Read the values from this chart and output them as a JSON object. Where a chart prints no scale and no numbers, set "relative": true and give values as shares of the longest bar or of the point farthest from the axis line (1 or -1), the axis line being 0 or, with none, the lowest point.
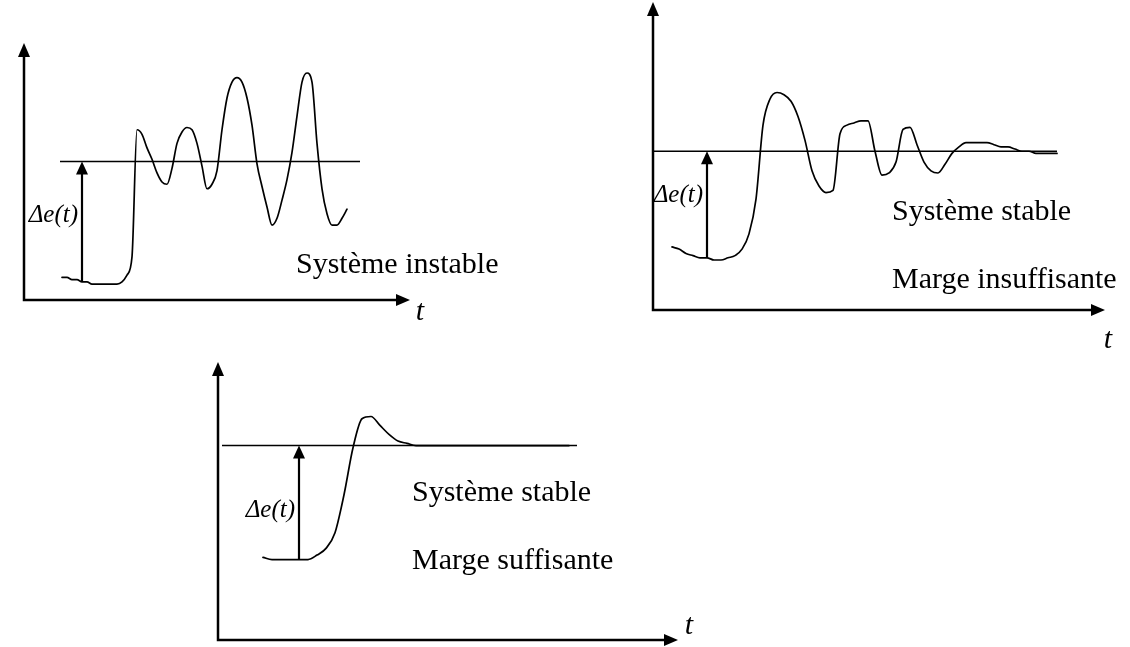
{
  "chart_data": [
    {
      "type": "line",
      "relative": true,
      "xlabel": "t",
      "color": "#000000",
      "categories": [
        null,
        null,
        null,
        null,
        null,
        null,
        null,
        null,
        null,
        null,
        null,
        null,
        null,
        null,
        null,
        null,
        null,
        null,
        null,
        null,
        null,
        null,
        null,
        null,
        null,
        null,
        null,
        null,
        null,
        null,
        null,
        null,
        null,
        null,
        null,
        null,
        null,
        null,
        null,
        null,
        null,
        null,
        null,
        null,
        null,
        null,
        null,
        null,
        null,
        null,
        null,
        null,
        null,
        null,
        null,
        null,
        null,
        null
      ],
      "values": [
        0.1,
        0.1,
        0.09,
        0.09,
        0.08,
        0.08,
        0.07,
        0.07,
        0.07,
        0.07,
        0.07,
        0.07,
        0.08,
        0.11,
        0.19,
        0.75,
        0.73,
        0.67,
        0.62,
        0.56,
        0.52,
        0.51,
        0.58,
        0.69,
        0.74,
        0.76,
        0.75,
        0.69,
        0.59,
        0.49,
        0.51,
        0.57,
        0.75,
        0.89,
        0.96,
        0.98,
        0.96,
        0.89,
        0.77,
        0.6,
        0.5,
        0.41,
        0.33,
        0.36,
        0.44,
        0.53,
        0.65,
        0.81,
        0.96,
        1.0,
        0.96,
        0.69,
        0.49,
        0.38,
        0.33,
        0.33,
        0.36,
        0.4
      ],
      "ref_lines": [
        {
          "axis": "y",
          "value": 0.61
        }
      ],
      "annotations": [
        "Δe(t)",
        "Système instable"
      ]
    },
    {
      "type": "line",
      "relative": true,
      "xlabel": "t",
      "color": "#000000",
      "categories": [
        null,
        null,
        null,
        null,
        null,
        null,
        null,
        null,
        null,
        null,
        null,
        null,
        null,
        null,
        null,
        null,
        null,
        null,
        null,
        null,
        null,
        null,
        null,
        null,
        null,
        null,
        null,
        null,
        null,
        null,
        null,
        null,
        null,
        null,
        null,
        null,
        null,
        null,
        null,
        null,
        null,
        null,
        null,
        null,
        null,
        null,
        null,
        null,
        null,
        null,
        null,
        null,
        null,
        null,
        null,
        null
      ],
      "values": [
        0.29,
        0.28,
        0.26,
        0.25,
        0.24,
        0.24,
        0.23,
        0.23,
        0.24,
        0.25,
        0.28,
        0.35,
        0.51,
        0.85,
        0.97,
        1.0,
        0.99,
        0.96,
        0.89,
        0.78,
        0.64,
        0.57,
        0.54,
        0.55,
        0.81,
        0.85,
        0.86,
        0.87,
        0.87,
        0.73,
        0.62,
        0.63,
        0.68,
        0.83,
        0.84,
        0.76,
        0.68,
        0.64,
        0.63,
        0.67,
        0.72,
        0.75,
        0.77,
        0.77,
        0.77,
        0.77,
        0.76,
        0.75,
        0.75,
        0.74,
        0.73,
        0.73,
        0.72,
        0.72,
        0.72,
        0.72
      ],
      "ref_lines": [
        {
          "axis": "y",
          "value": 0.73
        }
      ],
      "annotations": [
        "Δe(t)",
        "Système stable",
        "Marge insuffisante"
      ]
    },
    {
      "type": "line",
      "relative": true,
      "xlabel": "t",
      "color": "#000000",
      "categories": [
        null,
        null,
        null,
        null,
        null,
        null,
        null,
        null,
        null,
        null,
        null,
        null,
        null,
        null,
        null,
        null,
        null,
        null,
        null,
        null,
        null,
        null,
        null,
        null,
        null,
        null,
        null,
        null,
        null,
        null,
        null,
        null,
        null,
        null,
        null
      ],
      "values": [
        0.37,
        0.36,
        0.36,
        0.36,
        0.36,
        0.36,
        0.38,
        0.41,
        0.48,
        0.65,
        0.86,
        0.99,
        1.0,
        0.96,
        0.92,
        0.89,
        0.88,
        0.87,
        0.87,
        0.87,
        0.87,
        0.87,
        0.87,
        0.87,
        0.87,
        0.87,
        0.87,
        0.87,
        0.87,
        0.87,
        0.87,
        0.87,
        0.87,
        0.87,
        0.87
      ],
      "ref_lines": [
        {
          "axis": "y",
          "value": 0.87
        }
      ],
      "annotations": [
        "Δe(t)",
        "Système stable",
        "Marge suffisante"
      ]
    }
  ]
}
